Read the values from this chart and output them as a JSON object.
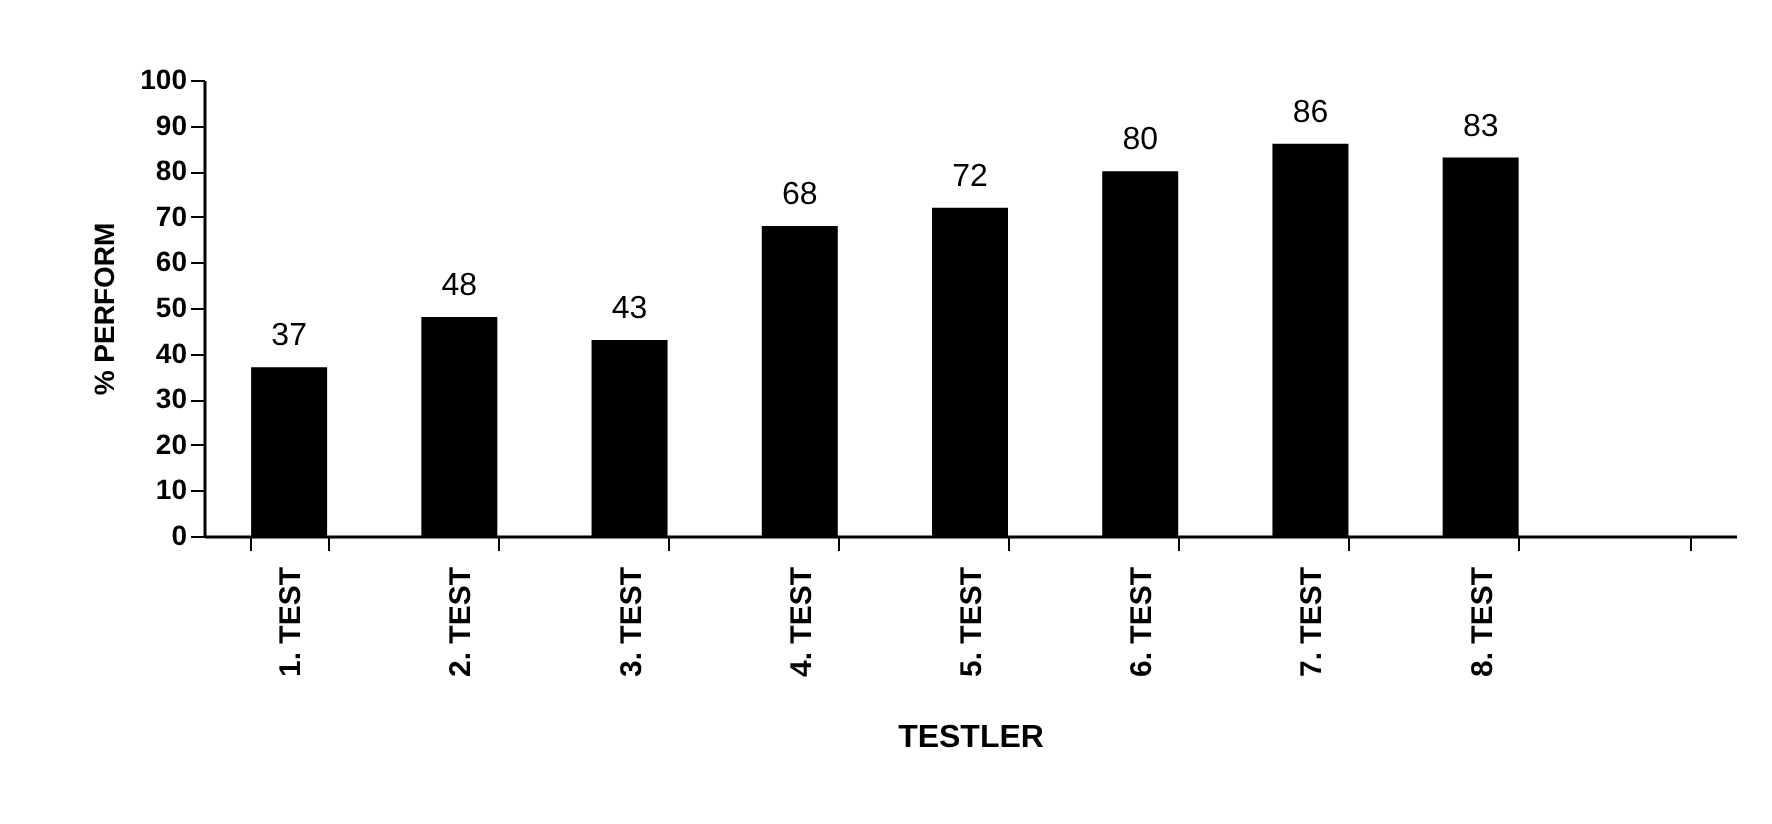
{
  "chart_data": {
    "type": "bar",
    "xlabel": "TESTLER",
    "ylabel": "% PERFORM",
    "categories": [
      "1. TEST",
      "2. TEST",
      "3. TEST",
      "4. TEST",
      "5. TEST",
      "6. TEST",
      "7. TEST",
      "8. TEST",
      null
    ],
    "values": [
      37,
      48,
      43,
      68,
      72,
      80,
      86,
      83,
      null
    ],
    "color": "#000000",
    "ylim": [
      0,
      100
    ],
    "yticks": [
      0,
      10,
      20,
      30,
      40,
      50,
      60,
      70,
      80,
      90,
      100
    ],
    "grid": false,
    "data_labels": true
  }
}
